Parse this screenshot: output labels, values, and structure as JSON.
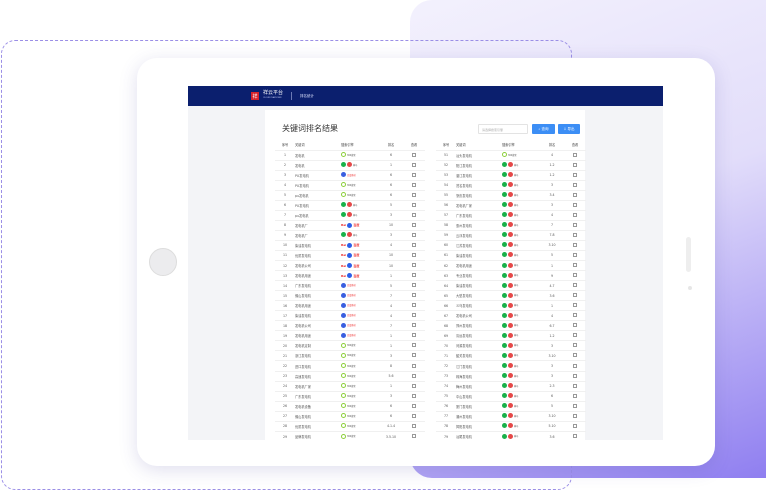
{
  "header": {
    "logo": "祥云平台",
    "logo_sub": "CLOUD PLATFORM",
    "nav": "排名统计"
  },
  "page": {
    "title": "关键词排名结果",
    "search_placeholder": "请选择搜索引擎",
    "query_label": "查询",
    "export_label": "导出"
  },
  "columns": [
    "序号",
    "关键词",
    "搜索引擎",
    "排名",
    "查看"
  ],
  "engines": {
    "360": "360搜索",
    "sm": "神马",
    "bd": "百度",
    "bm": "百度移动"
  },
  "colors": {
    "header": "#0b1f6e",
    "button": "#3c8ef5"
  },
  "left_rows": [
    [
      "1",
      "发电机",
      "360",
      "6"
    ],
    [
      "2",
      "发电机",
      "sm",
      "1"
    ],
    [
      "3",
      "PU发电机",
      "bm",
      "6"
    ],
    [
      "4",
      "PU发电机",
      "360",
      "6"
    ],
    [
      "5",
      "pu发电机",
      "360",
      "6"
    ],
    [
      "6",
      "PU发电机",
      "sm",
      "5"
    ],
    [
      "7",
      "pu发电机",
      "sm",
      "3"
    ],
    [
      "8",
      "发电机厂",
      "bd",
      "10"
    ],
    [
      "9",
      "发电机厂",
      "sm",
      "3"
    ],
    [
      "10",
      "柴油发电机",
      "bd",
      "4"
    ],
    [
      "11",
      "优质发电机",
      "bd",
      "10"
    ],
    [
      "12",
      "发电机公司",
      "bd",
      "10"
    ],
    [
      "13",
      "发电机用途",
      "bd",
      "1"
    ],
    [
      "14",
      "广东发电机",
      "bm",
      "5"
    ],
    [
      "15",
      "佛山发电机",
      "bm",
      "7"
    ],
    [
      "16",
      "发电机用途",
      "bm",
      "4"
    ],
    [
      "17",
      "柴油发电机",
      "bm",
      "4"
    ],
    [
      "18",
      "发电机公司",
      "bm",
      "7"
    ],
    [
      "19",
      "发电机用途",
      "bm",
      "1"
    ],
    [
      "20",
      "发电机定制",
      "360",
      "1"
    ],
    [
      "21",
      "浙江发电机",
      "360",
      "3"
    ],
    [
      "22",
      "进口发电机",
      "360",
      "8"
    ],
    [
      "23",
      "高速发电机",
      "360",
      "5.6"
    ],
    [
      "24",
      "发电机厂家",
      "360",
      "1"
    ],
    [
      "25",
      "广东发电机",
      "360",
      "3"
    ],
    [
      "26",
      "发电机设备",
      "360",
      "6"
    ],
    [
      "27",
      "佛山发电机",
      "360",
      "6"
    ],
    [
      "28",
      "优质发电机",
      "360",
      "4.1.4"
    ],
    [
      "29",
      "品牌发电机",
      "360",
      "3.5.10"
    ]
  ],
  "right_rows": [
    [
      "51",
      "汕头发电机",
      "360",
      "4"
    ],
    [
      "52",
      "阳江发电机",
      "sm",
      "1.2"
    ],
    [
      "53",
      "湛江发电机",
      "sm",
      "1.2"
    ],
    [
      "54",
      "茂名发电机",
      "sm",
      "3"
    ],
    [
      "55",
      "肇庆发电机",
      "sm",
      "3.4"
    ],
    [
      "56",
      "发电机厂家",
      "sm",
      "3"
    ],
    [
      "57",
      "广东发电机",
      "sm",
      "4"
    ],
    [
      "58",
      "惠州发电机",
      "sm",
      "7"
    ],
    [
      "59",
      "云浮发电机",
      "sm",
      "7.8"
    ],
    [
      "60",
      "江苏发电机",
      "sm",
      "3.10"
    ],
    [
      "61",
      "柴油发电机",
      "sm",
      "5"
    ],
    [
      "62",
      "发电机用途",
      "sm",
      "1"
    ],
    [
      "63",
      "专业发电机",
      "sm",
      "9"
    ],
    [
      "64",
      "柴油发电机",
      "sm",
      "4.7"
    ],
    [
      "65",
      "大型发电机",
      "sm",
      "3.6"
    ],
    [
      "66",
      "义乌发电机",
      "sm",
      "1"
    ],
    [
      "67",
      "发电机公司",
      "sm",
      "4"
    ],
    [
      "68",
      "郑州发电机",
      "sm",
      "6.7"
    ],
    [
      "69",
      "清远发电机",
      "sm",
      "1.2"
    ],
    [
      "70",
      "河源发电机",
      "sm",
      "3"
    ],
    [
      "71",
      "韶关发电机",
      "sm",
      "3.10"
    ],
    [
      "72",
      "江门发电机",
      "sm",
      "3"
    ],
    [
      "73",
      "珠海发电机",
      "sm",
      "3"
    ],
    [
      "74",
      "梅州发电机",
      "sm",
      "2.3"
    ],
    [
      "75",
      "中山发电机",
      "sm",
      "6"
    ],
    [
      "76",
      "厦门发电机",
      "sm",
      "5"
    ],
    [
      "77",
      "潮州发电机",
      "sm",
      "3.10"
    ],
    [
      "78",
      "揭阳发电机",
      "sm",
      "5.10"
    ],
    [
      "79",
      "汕尾发电机",
      "sm",
      "3.6"
    ]
  ]
}
